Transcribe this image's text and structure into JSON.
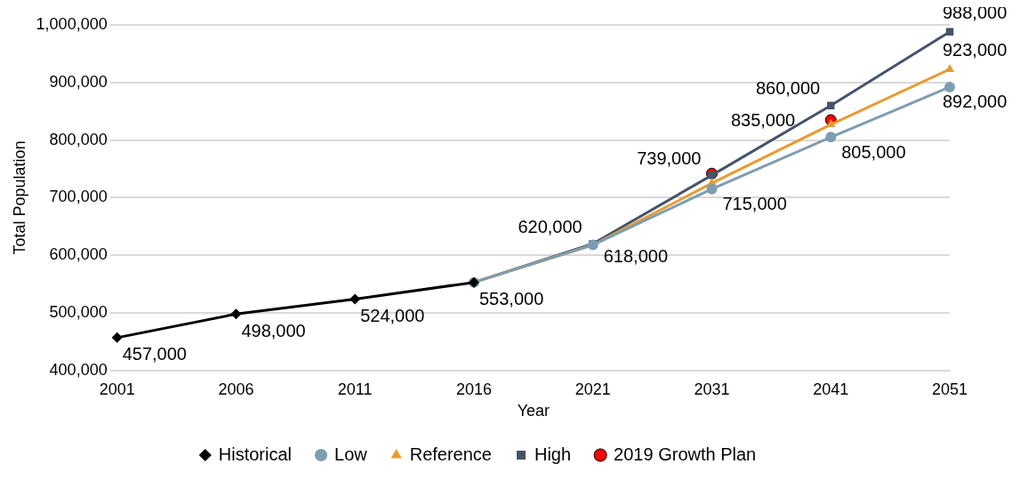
{
  "chart_data": {
    "type": "line",
    "xlabel": "Year",
    "ylabel": "Total Population",
    "categories": [
      "2001",
      "2006",
      "2011",
      "2016",
      "2021",
      "2031",
      "2041",
      "2051"
    ],
    "ylim": [
      400000,
      1000000
    ],
    "yticks": [
      {
        "value": 400000,
        "label": "400,000"
      },
      {
        "value": 500000,
        "label": "500,000"
      },
      {
        "value": 600000,
        "label": "600,000"
      },
      {
        "value": 700000,
        "label": "700,000"
      },
      {
        "value": 800000,
        "label": "800,000"
      },
      {
        "value": 900000,
        "label": "900,000"
      },
      {
        "value": 1000000,
        "label": "1,000,000"
      }
    ],
    "grid": "y",
    "legend": "bottom",
    "line_style": "solid",
    "series": [
      {
        "name": "Historical",
        "color": "#000000",
        "marker": "diamond",
        "values": [
          457000,
          498000,
          524000,
          553000,
          null,
          null,
          null,
          null
        ],
        "value_labels": [
          "457,000",
          "498,000",
          "524,000",
          "553,000",
          null,
          null,
          null,
          null
        ]
      },
      {
        "name": "Low",
        "color": "#7f9db0",
        "marker": "circle",
        "values": [
          null,
          null,
          null,
          553000,
          618000,
          715000,
          805000,
          892000
        ],
        "value_labels": [
          null,
          null,
          null,
          null,
          null,
          "715,000",
          "805,000",
          "892,000"
        ]
      },
      {
        "name": "Reference",
        "color": "#e69c32",
        "marker": "triangle",
        "values": [
          null,
          null,
          null,
          553000,
          618000,
          725000,
          827000,
          923000
        ],
        "value_labels": [
          null,
          null,
          null,
          null,
          "618,000",
          null,
          null,
          "923,000"
        ]
      },
      {
        "name": "High",
        "color": "#44546a",
        "marker": "square",
        "values": [
          null,
          null,
          null,
          553000,
          620000,
          739000,
          860000,
          988000
        ],
        "value_labels": [
          null,
          null,
          null,
          null,
          "620,000",
          "739,000",
          "860,000",
          "988,000"
        ]
      },
      {
        "name": "2019 Growth Plan",
        "type": "scatter",
        "color": "#ff0000",
        "marker": "circle",
        "values": [
          null,
          null,
          null,
          null,
          null,
          742000,
          835000,
          null
        ],
        "value_labels": [
          null,
          null,
          null,
          null,
          null,
          null,
          "835,000",
          null
        ]
      }
    ]
  }
}
